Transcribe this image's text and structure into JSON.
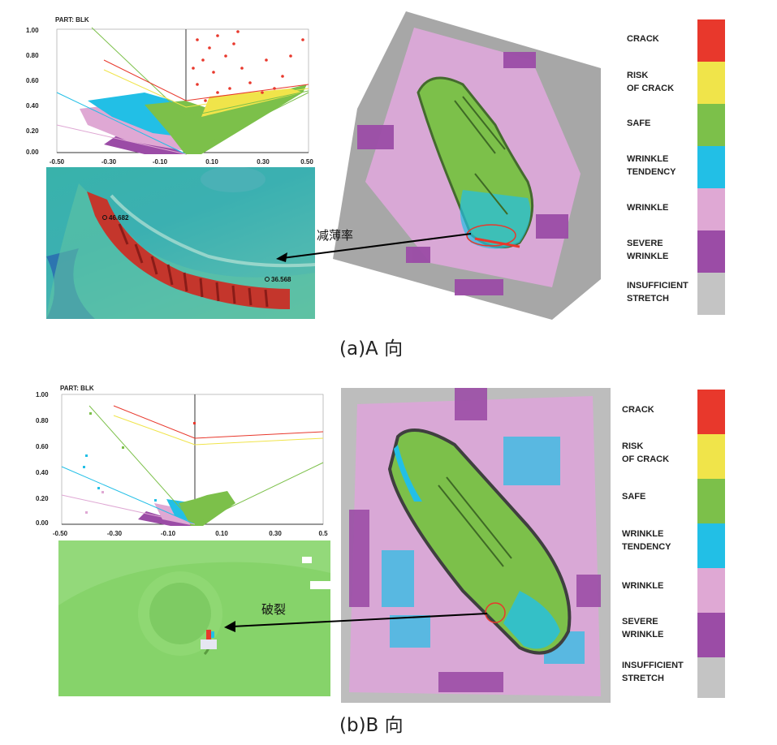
{
  "panels": [
    {
      "id": "a",
      "caption": "(a)A 向",
      "plot": {
        "part_label": "PART:  BLK",
        "y_ticks": [
          "1.00",
          "0.80",
          "0.60",
          "0.40",
          "0.20",
          "0.00"
        ],
        "x_ticks": [
          "-0.50",
          "-0.30",
          "-0.10",
          "0.10",
          "0.30",
          "0.50"
        ]
      },
      "zoom": {
        "label_1": "46.682",
        "label_2": "36.568"
      },
      "annotation": "减薄率",
      "legend": [
        {
          "label": "CRACK",
          "color": "#e8382c"
        },
        {
          "label": "RISK\nOF CRACK",
          "color": "#f0e44a"
        },
        {
          "label": "SAFE",
          "color": "#7cc04a"
        },
        {
          "label": "WRINKLE\nTENDENCY",
          "color": "#22bfe6"
        },
        {
          "label": "WRINKLE",
          "color": "#dfa8d4"
        },
        {
          "label": "SEVERE\nWRINKLE",
          "color": "#9b4ca6"
        },
        {
          "label": "INSUFFICIENT\nSTRETCH",
          "color": "#c4c4c4"
        }
      ]
    },
    {
      "id": "b",
      "caption": "(b)B 向",
      "plot": {
        "part_label": "PART:  BLK",
        "y_ticks": [
          "1.00",
          "0.80",
          "0.60",
          "0.40",
          "0.20",
          "0.00"
        ],
        "x_ticks": [
          "-0.50",
          "-0.30",
          "-0.10",
          "0.10",
          "0.30",
          "0.5"
        ]
      },
      "annotation": "破裂",
      "legend": [
        {
          "label": "CRACK",
          "color": "#e8382c"
        },
        {
          "label": "RISK\nOF CRACK",
          "color": "#f0e44a"
        },
        {
          "label": "SAFE",
          "color": "#7cc04a"
        },
        {
          "label": "WRINKLE\nTENDENCY",
          "color": "#22bfe6"
        },
        {
          "label": "WRINKLE",
          "color": "#dfa8d4"
        },
        {
          "label": "SEVERE\nWRINKLE",
          "color": "#9b4ca6"
        },
        {
          "label": "INSUFFICIENT\nSTRETCH",
          "color": "#c4c4c4"
        }
      ]
    }
  ]
}
